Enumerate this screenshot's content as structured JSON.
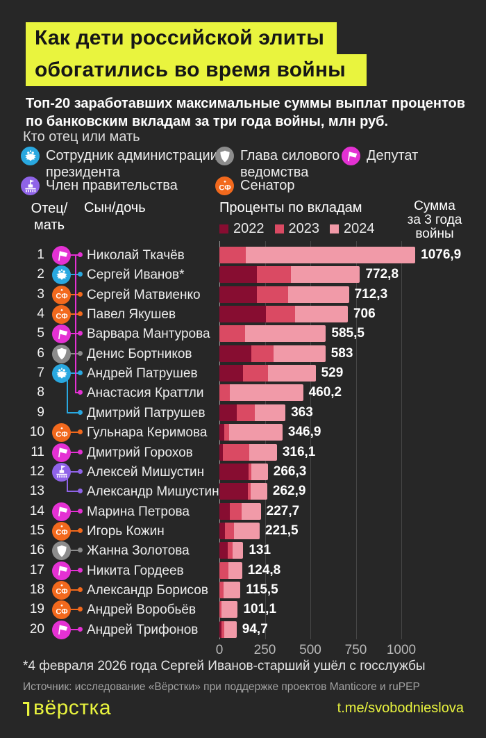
{
  "title": {
    "line1": "Как дети российской элиты",
    "line2": "обогатились во время войны"
  },
  "subtitle": {
    "line1": "Топ-20 заработавших максимальные суммы выплат процентов",
    "line2": "по банковским вкладам за три года войны, млн руб."
  },
  "colors": {
    "background": "#272727",
    "accent_yellow": "#e9f43e",
    "year_2022": "#870d31",
    "year_2023": "#da4a63",
    "year_2024": "#f19aa8",
    "admin": "#29a8e0",
    "security": "#8c8c8c",
    "deputy": "#e431d3",
    "government": "#8f63e8",
    "senator": "#f2691d"
  },
  "parent_legend": {
    "title": "Кто отец или мать",
    "items": [
      {
        "id": "admin",
        "lines": [
          "Сотрудник администрации",
          "президента"
        ],
        "icon": "double-eagle-icon"
      },
      {
        "id": "security",
        "lines": [
          "Глава силового",
          "ведомства"
        ],
        "icon": "shield-icon"
      },
      {
        "id": "deputy",
        "lines": [
          "Депутат"
        ],
        "icon": "flag-icon"
      },
      {
        "id": "government",
        "lines": [
          "Член правительства"
        ],
        "icon": "government-building-icon"
      },
      {
        "id": "senator",
        "lines": [
          "Сенатор"
        ],
        "icon": "senate-icon"
      }
    ]
  },
  "columns": {
    "father_line1": "Отец/",
    "father_line2": "мать",
    "child": "Сын/дочь",
    "percents": "Проценты по вкладам",
    "sum_line1": "Сумма",
    "sum_line2": "за 3 года",
    "sum_line3": "войны"
  },
  "chart_data": {
    "type": "bar",
    "orientation": "horizontal",
    "stacked": true,
    "unit": "млн руб.",
    "years": [
      "2022",
      "2023",
      "2024"
    ],
    "axis_ticks": [
      "0",
      "250",
      "500",
      "750",
      "1000"
    ],
    "axis_max": 1100,
    "grid": true,
    "note": "per-year values estimated from segment lengths; totals are labeled exactly",
    "rows": [
      {
        "rank": "1",
        "name": "Николай Ткачёв",
        "parent": "deputy",
        "show_icon": true,
        "total": 1076.9,
        "total_label": "1076,9",
        "values": [
          0,
          145,
          931.9
        ]
      },
      {
        "rank": "2",
        "name": "Сергей Иванов*",
        "parent": "admin",
        "show_icon": true,
        "total": 772.8,
        "total_label": "772,8",
        "values": [
          205,
          190,
          377.8
        ]
      },
      {
        "rank": "3",
        "name": "Сергей Матвиенко",
        "parent": "senator",
        "show_icon": true,
        "total": 712.3,
        "total_label": "712,3",
        "values": [
          207,
          170,
          335.3
        ]
      },
      {
        "rank": "4",
        "name": "Павел Якушев",
        "parent": "senator",
        "show_icon": true,
        "total": 706,
        "total_label": "706",
        "values": [
          255,
          160,
          291
        ]
      },
      {
        "rank": "5",
        "name": "Варвара Мантурова",
        "parent": "deputy",
        "show_icon": true,
        "total": 585.5,
        "total_label": "585,5",
        "values": [
          0,
          143,
          442.5
        ]
      },
      {
        "rank": "6",
        "name": "Денис Бортников",
        "parent": "security",
        "show_icon": true,
        "total": 583,
        "total_label": "583",
        "values": [
          175,
          123,
          285
        ]
      },
      {
        "rank": "7",
        "name": "Андрей Патрушев",
        "parent": "admin",
        "show_icon": true,
        "total": 529,
        "total_label": "529",
        "values": [
          128,
          140,
          261
        ]
      },
      {
        "rank": "8",
        "name": "Анастасия Краттли",
        "parent": "deputy",
        "show_icon": false,
        "total": 460.2,
        "total_label": "460,2",
        "values": [
          0,
          57,
          403.2
        ]
      },
      {
        "rank": "9",
        "name": "Дмитрий Патрушев",
        "parent": "admin",
        "show_icon": false,
        "total": 363,
        "total_label": "363",
        "values": [
          94,
          99,
          170
        ]
      },
      {
        "rank": "10",
        "name": "Гульнара Керимова",
        "parent": "senator",
        "show_icon": true,
        "total": 346.9,
        "total_label": "346,9",
        "values": [
          26,
          27,
          293.9
        ]
      },
      {
        "rank": "11",
        "name": "Дмитрий Горохов",
        "parent": "deputy",
        "show_icon": true,
        "total": 316.1,
        "total_label": "316,1",
        "values": [
          18,
          148,
          150.1
        ]
      },
      {
        "rank": "12",
        "name": "Алексей Мишустин",
        "parent": "government",
        "show_icon": true,
        "total": 266.3,
        "total_label": "266,3",
        "values": [
          160,
          14,
          92.3
        ]
      },
      {
        "rank": "13",
        "name": "Александр Мишустин",
        "parent": "government",
        "show_icon": false,
        "total": 262.9,
        "total_label": "262,9",
        "values": [
          155,
          17,
          90.9
        ]
      },
      {
        "rank": "14",
        "name": "Марина Петрова",
        "parent": "deputy",
        "show_icon": true,
        "total": 227.7,
        "total_label": "227,7",
        "values": [
          57,
          66,
          104.7
        ]
      },
      {
        "rank": "15",
        "name": "Игорь Кожин",
        "parent": "senator",
        "show_icon": true,
        "total": 221.5,
        "total_label": "221,5",
        "values": [
          32,
          50,
          139.5
        ]
      },
      {
        "rank": "16",
        "name": "Жанна Золотова",
        "parent": "security",
        "show_icon": true,
        "total": 131,
        "total_label": "131",
        "values": [
          47,
          26,
          58
        ]
      },
      {
        "rank": "17",
        "name": "Никита Гордеев",
        "parent": "deputy",
        "show_icon": true,
        "total": 124.8,
        "total_label": "124,8",
        "values": [
          0,
          51,
          73.8
        ]
      },
      {
        "rank": "18",
        "name": "Александр Борисов",
        "parent": "senator",
        "show_icon": true,
        "total": 115.5,
        "total_label": "115,5",
        "values": [
          0,
          22,
          93.5
        ]
      },
      {
        "rank": "19",
        "name": "Андрей Воробьёв",
        "parent": "senator",
        "show_icon": true,
        "total": 101.1,
        "total_label": "101,1",
        "values": [
          0,
          13,
          88.1
        ]
      },
      {
        "rank": "20",
        "name": "Андрей Трифонов",
        "parent": "deputy",
        "show_icon": true,
        "total": 94.7,
        "total_label": "94,7",
        "values": [
          10,
          18,
          66.7
        ]
      }
    ],
    "family_links": [
      {
        "from_rank": 1,
        "to_rank": 8
      },
      {
        "from_rank": 7,
        "to_rank": 9
      },
      {
        "from_rank": 12,
        "to_rank": 13
      }
    ]
  },
  "footer": {
    "footnote": "*4 февраля 2026 года Сергей Иванов-старший ушёл с госслужбы",
    "source": "Источник: исследование «Вёрстки» при поддержке проектов Manticore и ruPEP",
    "logo": "вёрстка",
    "link": "t.me/svobodnieslova"
  }
}
